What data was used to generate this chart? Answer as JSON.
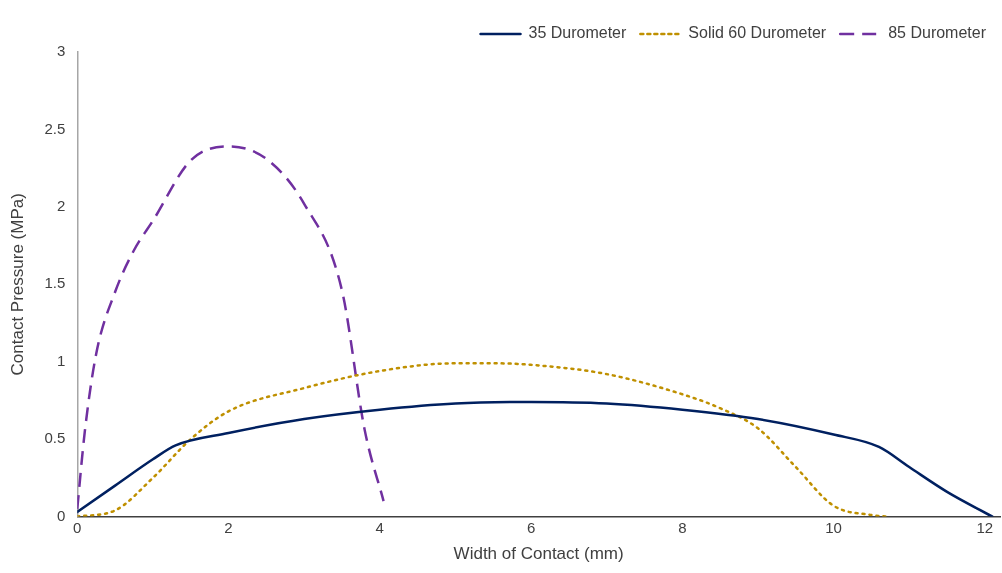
{
  "chart_data": {
    "type": "line",
    "xlabel": "Width of Contact (mm)",
    "ylabel": "Contact Pressure (MPa)",
    "xlim": [
      0,
      12.2
    ],
    "xticks": [
      0,
      2,
      4,
      6,
      8,
      10,
      12
    ],
    "ylim": [
      0,
      3
    ],
    "yticks": [
      0,
      0.5,
      1,
      1.5,
      2,
      2.5,
      3
    ],
    "grid": false,
    "legend": "top right",
    "marker": "none",
    "series": [
      {
        "name": "35 Durometer",
        "color": "#002060",
        "line_style": "solid",
        "x": [
          0,
          0.5,
          1,
          1.3,
          2,
          3,
          4,
          5,
          6,
          7,
          8,
          9,
          10,
          10.6,
          11,
          11.5,
          12.1
        ],
        "values": [
          0.03,
          0.2,
          0.37,
          0.46,
          0.54,
          0.63,
          0.69,
          0.73,
          0.74,
          0.73,
          0.69,
          0.63,
          0.53,
          0.45,
          0.32,
          0.16,
          0
        ]
      },
      {
        "name": "Solid 60 Durometer",
        "color": "#bf9000",
        "line_style": "dotted",
        "x": [
          0,
          0.5,
          1,
          1.5,
          2,
          3,
          4,
          5,
          5.5,
          6,
          7,
          8,
          8.5,
          9,
          9.5,
          10,
          10.5,
          10.7
        ],
        "values": [
          0,
          0.04,
          0.25,
          0.5,
          0.68,
          0.83,
          0.94,
          0.99,
          0.99,
          0.98,
          0.92,
          0.79,
          0.7,
          0.57,
          0.32,
          0.07,
          0.01,
          0
        ]
      },
      {
        "name": "85 Durometer",
        "color": "#7030a0",
        "line_style": "dashed",
        "x": [
          0,
          0.1,
          0.25,
          0.5,
          0.75,
          1,
          1.5,
          2,
          2.5,
          3,
          3.5,
          3.8,
          4.05
        ],
        "values": [
          0.05,
          0.55,
          1.05,
          1.45,
          1.72,
          1.91,
          2.3,
          2.39,
          2.31,
          2.02,
          1.46,
          0.56,
          0.1
        ]
      }
    ]
  }
}
